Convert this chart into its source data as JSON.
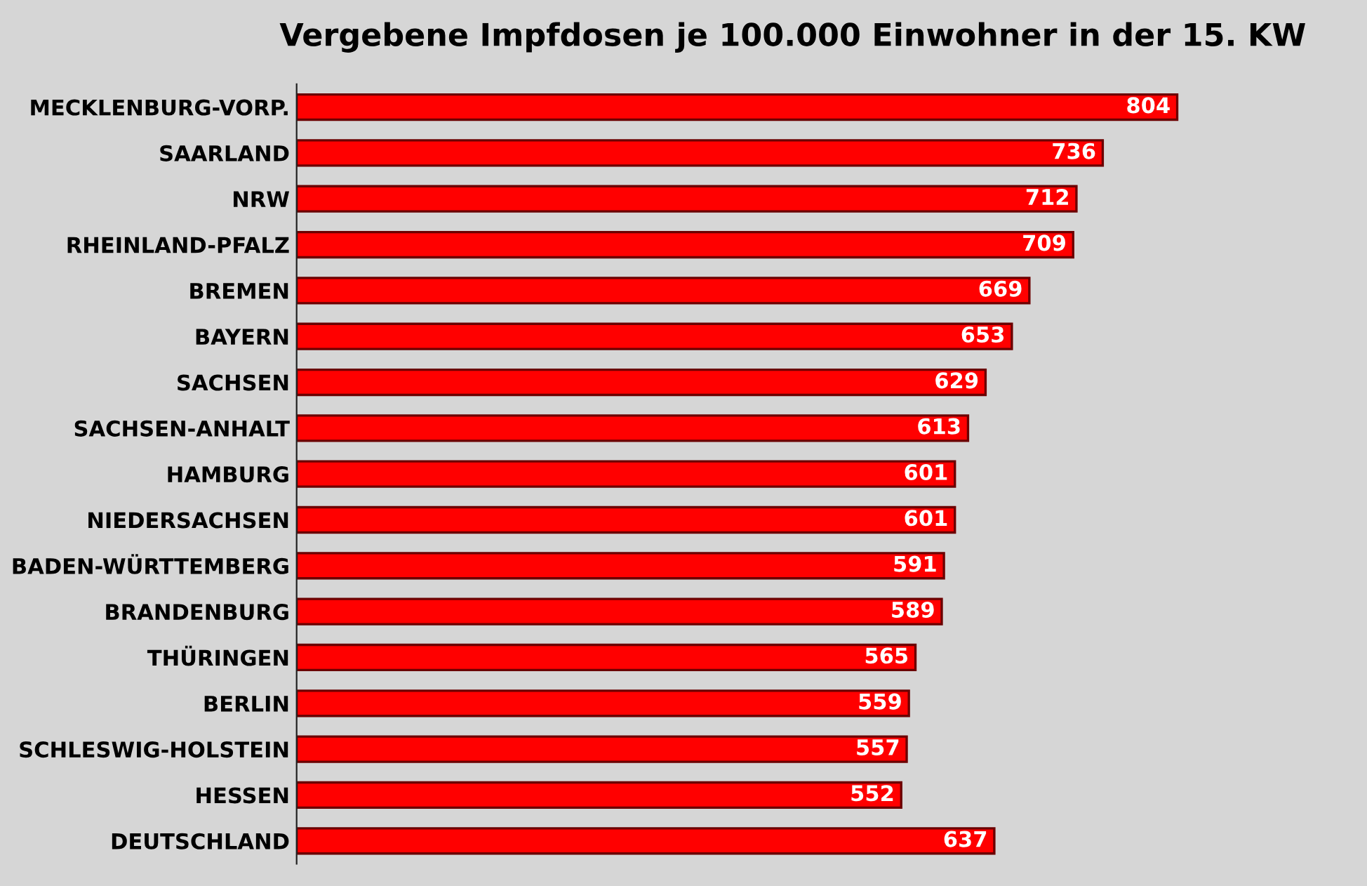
{
  "chart_data": {
    "type": "bar",
    "orientation": "horizontal",
    "title": "Vergebene Impfdosen je 100.000 Einwohner in der 15. KW",
    "categories": [
      "MECKLENBURG-VORP.",
      "SAARLAND",
      "NRW",
      "RHEINLAND-PFALZ",
      "BREMEN",
      "BAYERN",
      "SACHSEN",
      "SACHSEN-ANHALT",
      "HAMBURG",
      "NIEDERSACHSEN",
      "BADEN-WÜRTTEMBERG",
      "BRANDENBURG",
      "THÜRINGEN",
      "BERLIN",
      "SCHLESWIG-HOLSTEIN",
      "HESSEN",
      "DEUTSCHLAND"
    ],
    "values": [
      804,
      736,
      712,
      709,
      669,
      653,
      629,
      613,
      601,
      601,
      591,
      589,
      565,
      559,
      557,
      552,
      637
    ],
    "color": "#ff0000",
    "data_labels": true,
    "tick_labels": "y",
    "grid": false,
    "legend": false
  }
}
